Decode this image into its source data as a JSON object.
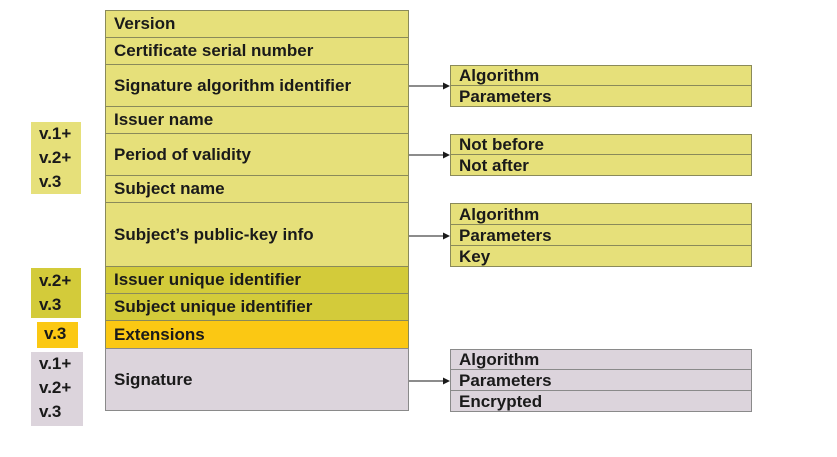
{
  "fields": {
    "version": "Version",
    "serial": "Certificate serial number",
    "sig_alg": "Signature algorithm identifier",
    "issuer": "Issuer name",
    "validity": "Period of validity",
    "subject": "Subject name",
    "pubkey": "Subject’s public-key info",
    "issuer_uid": "Issuer unique identifier",
    "subject_uid": "Subject unique identifier",
    "extensions": "Extensions",
    "signature": "Signature"
  },
  "sub": {
    "sig_alg": [
      "Algorithm",
      "Parameters"
    ],
    "validity": [
      "Not before",
      "Not after"
    ],
    "pubkey": [
      "Algorithm",
      "Parameters",
      "Key"
    ],
    "signature": [
      "Algorithm",
      "Parameters",
      "Encrypted"
    ]
  },
  "versions": {
    "v1_block": [
      "v.1+",
      "v.2+",
      "v.3"
    ],
    "v2_block": [
      "v.2+",
      "v.3"
    ],
    "v3_block": [
      "v.3"
    ],
    "sig_block": [
      "v.1+",
      "v.2+",
      "v.3"
    ]
  },
  "colors": {
    "base_field": "#e6e07a",
    "v2_field": "#d3cb3a",
    "v3_field": "#fbc813",
    "signature_field": "#dcd4dc"
  }
}
